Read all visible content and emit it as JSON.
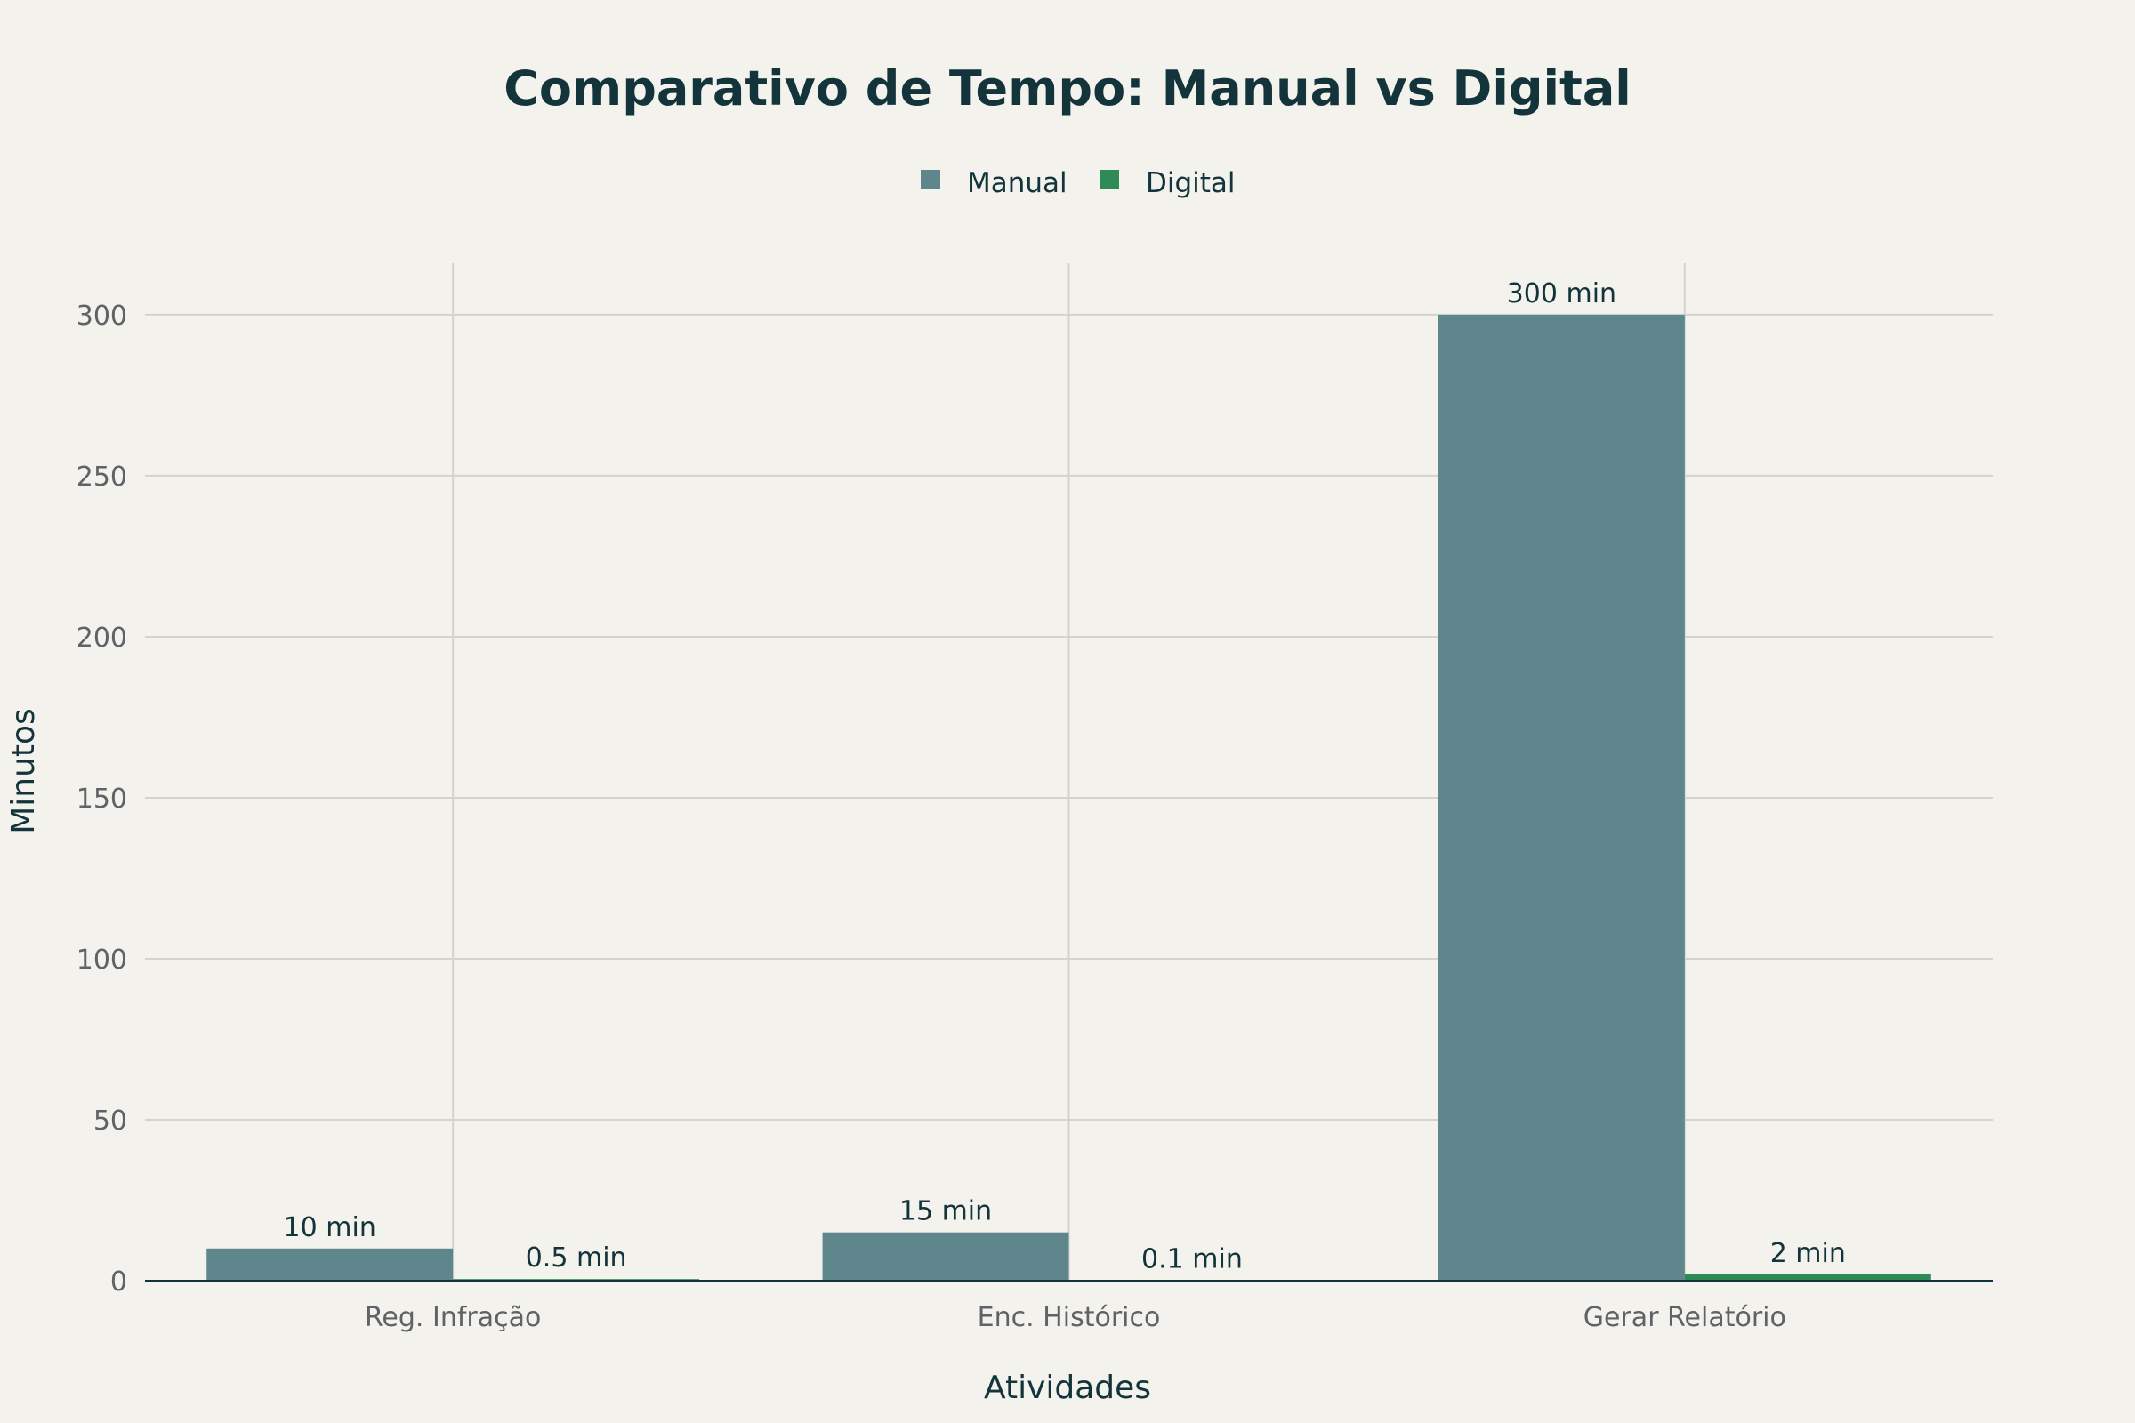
{
  "chart_data": {
    "type": "bar",
    "title": "Comparativo de Tempo: Manual vs Digital",
    "xlabel": "Atividades",
    "ylabel": "Minutos",
    "categories": [
      "Reg. Infração",
      "Enc. Histórico",
      "Gerar Relatório"
    ],
    "series": [
      {
        "name": "Manual",
        "color": "#5e868c",
        "values": [
          10,
          15,
          300
        ],
        "labels": [
          "10 min",
          "15 min",
          "300 min"
        ]
      },
      {
        "name": "Digital",
        "color": "#2e8b57",
        "values": [
          0.5,
          0.1,
          2
        ],
        "labels": [
          "0.5 min",
          "0.1 min",
          "2 min"
        ]
      }
    ],
    "ylim": [
      0,
      316
    ],
    "yticks": [
      0,
      50,
      100,
      150,
      200,
      250,
      300
    ],
    "ytick_labels": [
      "0",
      "50",
      "100",
      "150",
      "200",
      "250",
      "300"
    ],
    "grid": true,
    "legend_position": "top-center",
    "background": "#f3f2ec"
  }
}
